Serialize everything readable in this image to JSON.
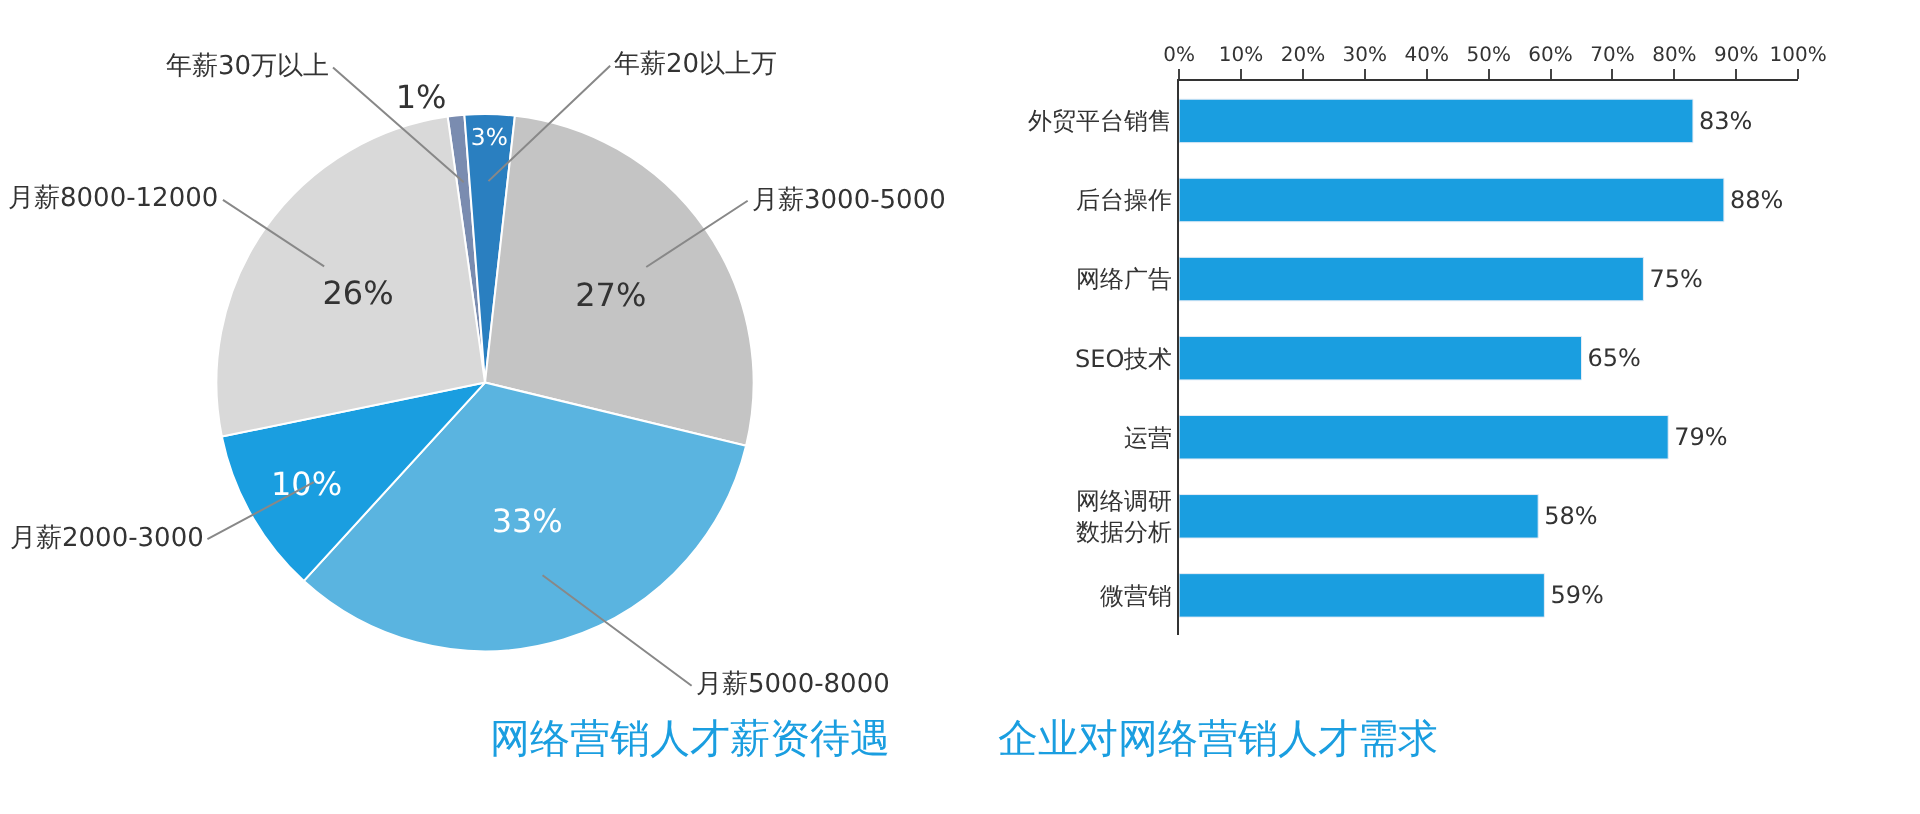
{
  "chart_data": [
    {
      "type": "pie",
      "title": "网络营销人才薪资待遇",
      "categories": [
        "年薪30万以上",
        "年薪20以上万",
        "月薪3000-5000",
        "月薪5000-8000",
        "月薪2000-3000",
        "月薪8000-12000"
      ],
      "values": [
        1,
        3,
        27,
        33,
        10,
        26
      ],
      "value_labels": [
        "1%",
        "3%",
        "27%",
        "33%",
        "10%",
        "26%"
      ],
      "colors": [
        "#7a8cb0",
        "#2a7fc0",
        "#c4c4c4",
        "#5ab4e0",
        "#1a9ee0",
        "#d9d9d9"
      ]
    },
    {
      "type": "bar",
      "orientation": "horizontal",
      "title": "企业对网络营销人才需求",
      "categories": [
        "外贸平台销售",
        "后台操作",
        "网络广告",
        "SEO技术",
        "运营",
        "网络调研数据分析",
        "微营销"
      ],
      "values": [
        83,
        88,
        75,
        65,
        79,
        58,
        59
      ],
      "value_labels": [
        "83%",
        "88%",
        "75%",
        "65%",
        "79%",
        "58%",
        "59%"
      ],
      "color": "#1a9ee0",
      "xlim": [
        0,
        100
      ],
      "grid": false,
      "xticks": [
        {
          "value": 0,
          "label": "0%"
        },
        {
          "value": 10,
          "label": "10%"
        },
        {
          "value": 20,
          "label": "20%"
        },
        {
          "value": 30,
          "label": "30%"
        },
        {
          "value": 40,
          "label": "40%"
        },
        {
          "value": 50,
          "label": "50%"
        },
        {
          "value": 60,
          "label": "60%"
        },
        {
          "value": 70,
          "label": "70%"
        },
        {
          "value": 80,
          "label": "80%"
        },
        {
          "value": 90,
          "label": "90%"
        },
        {
          "value": 100,
          "label": "100%"
        }
      ]
    }
  ]
}
